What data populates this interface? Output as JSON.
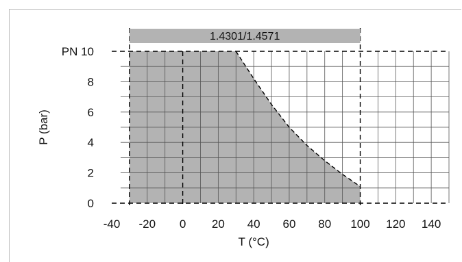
{
  "chart_data": {
    "type": "area",
    "band_label": "1.4301/1.4571",
    "xlabel": "T (°C)",
    "ylabel": "P (bar)",
    "xlim": [
      -40,
      150
    ],
    "ylim": [
      0,
      10
    ],
    "x_ticks": [
      -40,
      -20,
      0,
      20,
      40,
      60,
      80,
      100,
      120,
      140
    ],
    "x_tick_labels": [
      "-40",
      "-20",
      "0",
      "20",
      "40",
      "60",
      "80",
      "100",
      "120",
      "140"
    ],
    "y_ticks": [
      0,
      2,
      4,
      6,
      8,
      10
    ],
    "y_tick_labels": [
      "0",
      "2",
      "4",
      "6",
      "8",
      "PN 10"
    ],
    "grid": true,
    "series": [
      {
        "x": [
          -30,
          30,
          40,
          50,
          60,
          70,
          80,
          90,
          100
        ],
        "y": [
          10,
          10,
          8.2,
          6.5,
          5.0,
          3.8,
          2.8,
          1.9,
          1.1
        ]
      }
    ],
    "region_x": [
      -30,
      100
    ],
    "reference_x": [
      -30,
      0,
      100
    ],
    "reference_y": [
      0,
      10
    ],
    "colors": {
      "fill": "#b3b3b3",
      "band": "#b3b3b3",
      "grid": "#555555",
      "frame": "#bdbdbd"
    }
  }
}
